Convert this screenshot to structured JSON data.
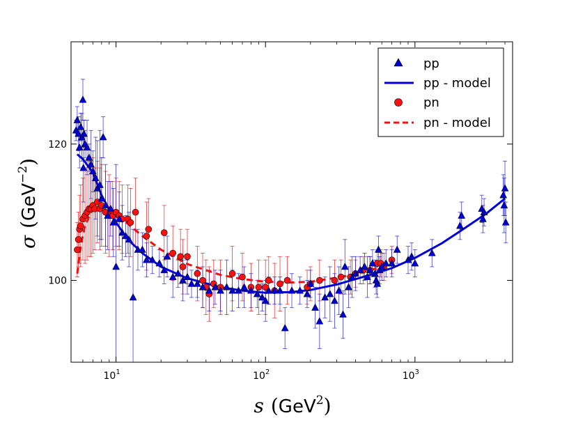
{
  "chart_data": {
    "type": "scatter",
    "xscale": "log",
    "xlabel": {
      "var": "s",
      "unit": "GeV",
      "exp": "2"
    },
    "ylabel": {
      "var": "σ",
      "unit": "GeV",
      "exp": "−2"
    },
    "xlim": [
      5.0,
      4500
    ],
    "ylim": [
      88,
      135
    ],
    "xticks": [
      {
        "value": 10,
        "base": "10",
        "exp": "1"
      },
      {
        "value": 100,
        "base": "10",
        "exp": "2"
      },
      {
        "value": 1000,
        "base": "10",
        "exp": "3"
      }
    ],
    "yticks": [
      {
        "value": 100,
        "label": "100"
      },
      {
        "value": 120,
        "label": "120"
      }
    ],
    "colors": {
      "pp": "#0000cc",
      "pn": "#dd0000"
    },
    "legend": {
      "position": "top-right",
      "entries": [
        {
          "label": "pp",
          "style": "triangle-marker"
        },
        {
          "label": "pp - model",
          "style": "solid-line"
        },
        {
          "label": "pn",
          "style": "circle-marker"
        },
        {
          "label": "pn - model",
          "style": "dashed-line"
        }
      ]
    },
    "series": [
      {
        "name": "pp",
        "marker": "triangle",
        "points": [
          [
            5.4,
            122.0,
            1.5
          ],
          [
            5.5,
            123.5,
            2.0
          ],
          [
            5.6,
            121.5,
            2.5
          ],
          [
            5.7,
            119.5,
            3.0
          ],
          [
            5.8,
            122.5,
            2.0
          ],
          [
            5.9,
            121.0,
            3.5
          ],
          [
            6.0,
            126.5,
            3.0
          ],
          [
            6.05,
            116.5,
            5.0
          ],
          [
            6.1,
            121.5,
            2.0
          ],
          [
            6.2,
            120.0,
            2.0
          ],
          [
            6.4,
            119.5,
            4.0
          ],
          [
            6.6,
            118.0,
            2.0
          ],
          [
            6.8,
            117.0,
            5.0
          ],
          [
            7.0,
            116.0,
            3.0
          ],
          [
            7.3,
            115.0,
            6.0
          ],
          [
            7.5,
            113.5,
            7.0
          ],
          [
            7.8,
            114.0,
            8.0
          ],
          [
            8.0,
            112.0,
            6.0
          ],
          [
            8.2,
            121.0,
            3.0
          ],
          [
            8.5,
            111.0,
            6.0
          ],
          [
            8.8,
            109.5,
            5.0
          ],
          [
            9.2,
            110.5,
            4.0
          ],
          [
            9.6,
            108.5,
            5.0
          ],
          [
            10.0,
            102.0,
            15.0
          ],
          [
            10.5,
            109.0,
            4.0
          ],
          [
            11.0,
            107.0,
            4.0
          ],
          [
            11.6,
            106.5,
            3.0
          ],
          [
            12.2,
            106.0,
            4.0
          ],
          [
            13.0,
            97.5,
            10.0
          ],
          [
            14.0,
            104.5,
            3.0
          ],
          [
            15.0,
            104.5,
            2.5
          ],
          [
            16.0,
            103.0,
            2.5
          ],
          [
            17.5,
            103.0,
            2.0
          ],
          [
            19.5,
            102.5,
            2.0
          ],
          [
            21.0,
            101.5,
            2.0
          ],
          [
            22.0,
            103.5,
            3.0
          ],
          [
            24.0,
            100.5,
            3.0
          ],
          [
            26.0,
            101.0,
            2.0
          ],
          [
            28.0,
            100.0,
            3.0
          ],
          [
            30.0,
            100.5,
            2.5
          ],
          [
            32.0,
            99.5,
            2.0
          ],
          [
            35.0,
            99.5,
            2.0
          ],
          [
            38.0,
            99.0,
            3.0
          ],
          [
            42.0,
            98.5,
            3.0
          ],
          [
            46.0,
            99.0,
            2.5
          ],
          [
            50.0,
            98.5,
            3.0
          ],
          [
            55.0,
            99.0,
            4.0
          ],
          [
            60.0,
            98.5,
            3.0
          ],
          [
            66.0,
            98.5,
            2.5
          ],
          [
            72.0,
            99.0,
            3.0
          ],
          [
            80.0,
            98.5,
            2.5
          ],
          [
            88.0,
            98.0,
            2.0
          ],
          [
            95.0,
            97.5,
            2.0
          ],
          [
            100.0,
            97.0,
            3.0
          ],
          [
            105.0,
            98.5,
            2.0
          ],
          [
            115.0,
            98.5,
            2.0
          ],
          [
            125.0,
            98.5,
            2.0
          ],
          [
            135.0,
            93.0,
            3.0
          ],
          [
            150.0,
            98.5,
            2.5
          ],
          [
            170.0,
            98.5,
            2.0
          ],
          [
            190.0,
            98.0,
            2.0
          ],
          [
            200.0,
            99.5,
            2.0
          ],
          [
            215.0,
            96.0,
            3.0
          ],
          [
            230.0,
            94.0,
            4.0
          ],
          [
            250.0,
            97.5,
            3.0
          ],
          [
            270.0,
            98.0,
            4.0
          ],
          [
            290.0,
            97.0,
            4.0
          ],
          [
            310.0,
            98.5,
            3.5
          ],
          [
            330.0,
            95.0,
            3.5
          ],
          [
            340.0,
            102.0,
            4.0
          ],
          [
            360.0,
            99.0,
            3.0
          ],
          [
            380.0,
            100.5,
            3.0
          ],
          [
            400.0,
            101.0,
            2.5
          ],
          [
            430.0,
            101.5,
            2.0
          ],
          [
            460.0,
            102.0,
            2.0
          ],
          [
            480.0,
            100.5,
            3.0
          ],
          [
            500.0,
            101.5,
            2.0
          ],
          [
            520.0,
            102.5,
            2.0
          ],
          [
            540.0,
            101.0,
            2.0
          ],
          [
            550.0,
            100.0,
            2.0
          ],
          [
            560.0,
            99.5,
            2.0
          ],
          [
            570.0,
            104.5,
            2.0
          ],
          [
            580.0,
            101.5,
            2.0
          ],
          [
            600.0,
            102.0,
            2.0
          ],
          [
            640.0,
            102.5,
            2.0
          ],
          [
            700.0,
            102.5,
            2.0
          ],
          [
            760.0,
            104.5,
            2.0
          ],
          [
            900.0,
            103.0,
            2.0
          ],
          [
            950.0,
            103.5,
            2.0
          ],
          [
            1000.0,
            102.5,
            2.0
          ],
          [
            1300.0,
            104.0,
            2.0
          ],
          [
            2000.0,
            108.0,
            2.0
          ],
          [
            2050.0,
            109.5,
            2.0
          ],
          [
            2800.0,
            110.5,
            2.0
          ],
          [
            2850.0,
            109.0,
            2.0
          ],
          [
            2900.0,
            110.0,
            2.0
          ],
          [
            3900.0,
            112.5,
            3.0
          ],
          [
            3950.0,
            111.0,
            4.0
          ],
          [
            4000.0,
            113.5,
            4.0
          ],
          [
            4050.0,
            108.5,
            3.0
          ]
        ]
      },
      {
        "name": "pp - model",
        "style": "solid",
        "points": [
          [
            5.5,
            118.5
          ],
          [
            6.0,
            117.8
          ],
          [
            7.0,
            115.8
          ],
          [
            8.0,
            112.5
          ],
          [
            10.0,
            108.5
          ],
          [
            12.0,
            106.0
          ],
          [
            15.0,
            104.0
          ],
          [
            20.0,
            102.0
          ],
          [
            30.0,
            100.3
          ],
          [
            50.0,
            99.0
          ],
          [
            70.0,
            98.5
          ],
          [
            100.0,
            98.2
          ],
          [
            150.0,
            98.3
          ],
          [
            200.0,
            98.6
          ],
          [
            300.0,
            99.4
          ],
          [
            500.0,
            100.8
          ],
          [
            700.0,
            101.8
          ],
          [
            1000.0,
            103.3
          ],
          [
            1500.0,
            105.4
          ],
          [
            2000.0,
            107.2
          ],
          [
            3000.0,
            109.8
          ],
          [
            4000.0,
            112.0
          ]
        ]
      },
      {
        "name": "pn",
        "marker": "circle",
        "points": [
          [
            5.5,
            104.5,
            4.0
          ],
          [
            5.6,
            106.0,
            4.0
          ],
          [
            5.7,
            107.5,
            5.0
          ],
          [
            5.8,
            108.0,
            6.0
          ],
          [
            6.0,
            109.0,
            6.0
          ],
          [
            6.2,
            109.5,
            7.0
          ],
          [
            6.4,
            110.0,
            7.0
          ],
          [
            6.6,
            110.5,
            7.0
          ],
          [
            6.8,
            110.5,
            7.0
          ],
          [
            7.0,
            111.0,
            7.0
          ],
          [
            7.2,
            110.5,
            6.0
          ],
          [
            7.5,
            111.5,
            6.0
          ],
          [
            7.8,
            110.5,
            6.0
          ],
          [
            8.0,
            111.0,
            6.0
          ],
          [
            8.5,
            110.0,
            6.0
          ],
          [
            9.0,
            109.5,
            6.0
          ],
          [
            9.5,
            109.5,
            5.0
          ],
          [
            10.0,
            110.0,
            5.0
          ],
          [
            10.5,
            109.5,
            5.0
          ],
          [
            11.0,
            109.0,
            5.0
          ],
          [
            12.0,
            109.0,
            5.0
          ],
          [
            12.5,
            108.5,
            5.0
          ],
          [
            13.5,
            110.0,
            5.0
          ],
          [
            16.0,
            106.5,
            5.0
          ],
          [
            16.5,
            107.5,
            4.5
          ],
          [
            21.0,
            107.0,
            4.0
          ],
          [
            24.0,
            104.0,
            4.0
          ],
          [
            27.0,
            103.5,
            4.0
          ],
          [
            28.0,
            102.0,
            4.0
          ],
          [
            30.0,
            103.5,
            4.0
          ],
          [
            35.0,
            101.0,
            4.0
          ],
          [
            38.0,
            100.0,
            4.0
          ],
          [
            40.0,
            99.0,
            4.0
          ],
          [
            42.0,
            98.0,
            4.0
          ],
          [
            45.0,
            99.5,
            3.5
          ],
          [
            50.0,
            99.0,
            4.0
          ],
          [
            60.0,
            101.0,
            4.0
          ],
          [
            70.0,
            100.5,
            3.5
          ],
          [
            80.0,
            99.0,
            3.5
          ],
          [
            90.0,
            99.0,
            4.0
          ],
          [
            100.0,
            99.0,
            4.0
          ],
          [
            105.0,
            100.0,
            3.5
          ],
          [
            115.0,
            98.5,
            4.0
          ],
          [
            125.0,
            99.5,
            4.0
          ],
          [
            140.0,
            100.0,
            3.5
          ],
          [
            190.0,
            99.0,
            2.5
          ],
          [
            200.0,
            99.5,
            2.5
          ],
          [
            230.0,
            100.0,
            3.0
          ],
          [
            290.0,
            100.0,
            3.0
          ],
          [
            320.0,
            100.5,
            2.5
          ],
          [
            370.0,
            100.5,
            2.5
          ],
          [
            400.0,
            101.0,
            2.0
          ],
          [
            450.0,
            101.5,
            2.0
          ],
          [
            500.0,
            101.5,
            2.0
          ],
          [
            560.0,
            102.5,
            2.0
          ],
          [
            590.0,
            102.5,
            2.0
          ],
          [
            620.0,
            102.0,
            2.0
          ],
          [
            700.0,
            103.0,
            2.0
          ]
        ]
      },
      {
        "name": "pn - model",
        "style": "dashed",
        "points": [
          [
            5.5,
            101.0
          ],
          [
            5.8,
            105.0
          ],
          [
            6.2,
            108.0
          ],
          [
            6.8,
            110.0
          ],
          [
            7.5,
            110.8
          ],
          [
            8.5,
            110.5
          ],
          [
            10.0,
            109.5
          ],
          [
            12.0,
            108.3
          ],
          [
            15.0,
            106.5
          ],
          [
            20.0,
            104.5
          ],
          [
            30.0,
            102.4
          ],
          [
            50.0,
            100.8
          ],
          [
            70.0,
            100.2
          ],
          [
            100.0,
            99.8
          ],
          [
            150.0,
            99.7
          ],
          [
            200.0,
            99.8
          ],
          [
            300.0,
            100.4
          ],
          [
            400.0,
            100.9
          ],
          [
            500.0,
            101.5
          ],
          [
            600.0,
            102.0
          ],
          [
            700.0,
            102.5
          ]
        ]
      }
    ]
  }
}
